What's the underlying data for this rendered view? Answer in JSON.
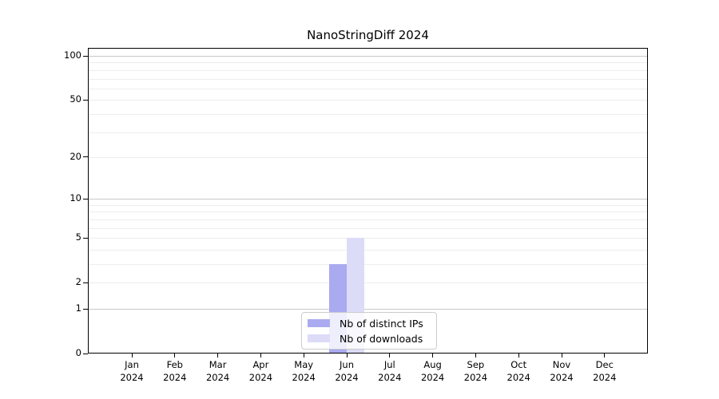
{
  "chart_data": {
    "type": "bar",
    "title": "NanoStringDiff 2024",
    "categories": [
      "Jan",
      "Feb",
      "Mar",
      "Apr",
      "May",
      "Jun",
      "Jul",
      "Aug",
      "Sep",
      "Oct",
      "Nov",
      "Dec"
    ],
    "category_year": "2024",
    "series": [
      {
        "name": "Nb of distinct IPs",
        "color": "#aaaaf0",
        "values": [
          0,
          0,
          0,
          0,
          0,
          3,
          0,
          0,
          0,
          0,
          0,
          0
        ]
      },
      {
        "name": "Nb of downloads",
        "color": "#dcdcf8",
        "values": [
          0,
          0,
          0,
          0,
          0,
          5,
          0,
          0,
          0,
          0,
          0,
          0
        ]
      }
    ],
    "yscale": "log1p",
    "ylim": [
      0,
      113
    ],
    "yticks": [
      0,
      1,
      2,
      5,
      10,
      20,
      50,
      100
    ],
    "gridlines_major": [
      1,
      10,
      100
    ],
    "gridlines_minor": [
      2,
      3,
      4,
      5,
      6,
      7,
      8,
      9,
      20,
      30,
      40,
      50,
      60,
      70,
      80,
      90
    ],
    "legend": {
      "position": "lower-center",
      "frame_alpha": 0.8
    },
    "colors": {
      "grid_major": "#c8c8c8",
      "grid_minor": "#ededed",
      "axis": "#000000"
    }
  }
}
